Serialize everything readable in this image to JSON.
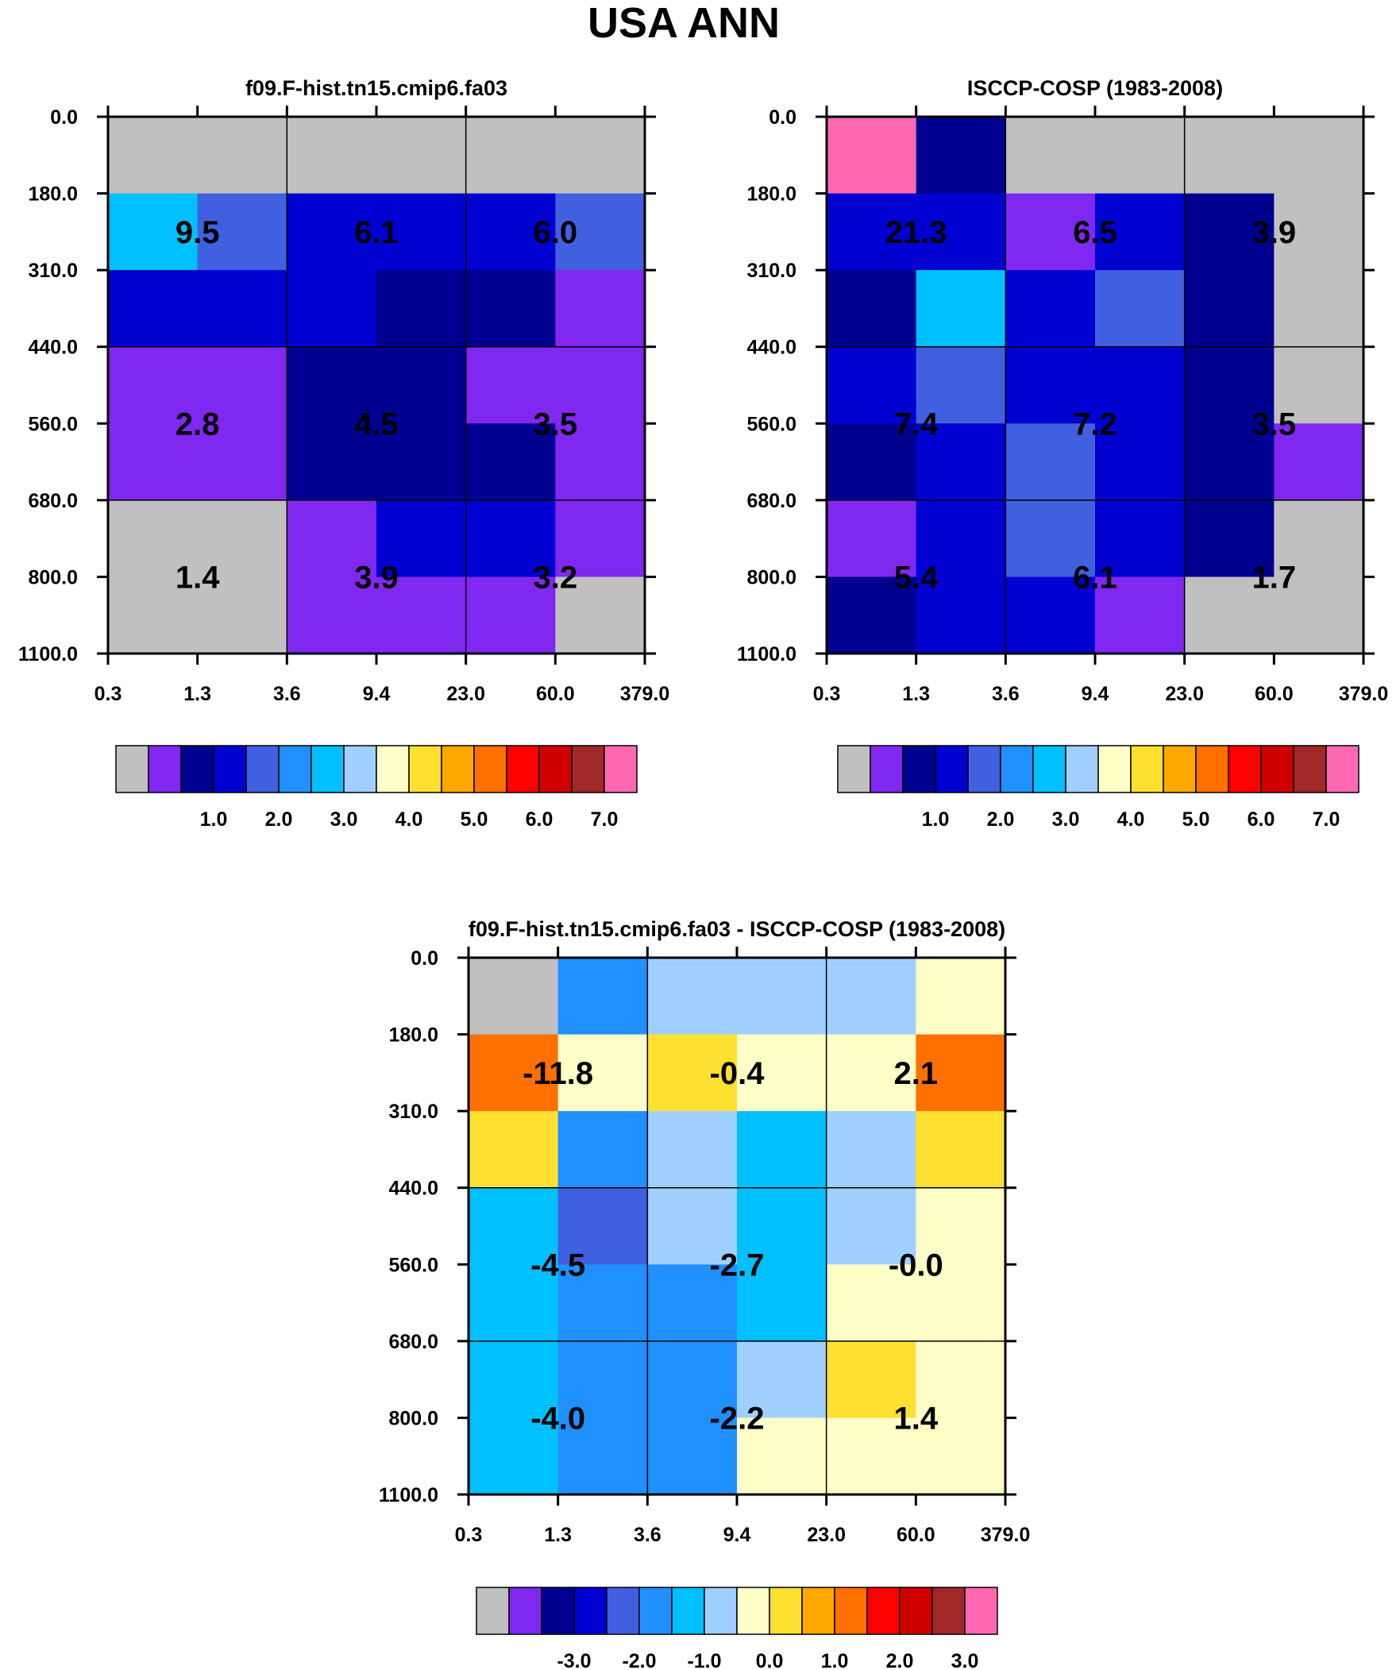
{
  "title": "USA ANN",
  "colors": {
    "palette": [
      "#c0c0c0",
      "#8028f0",
      "#000090",
      "#0000d0",
      "#4060e0",
      "#2090ff",
      "#00c0ff",
      "#a0d0ff",
      "#ffffc8",
      "#ffe030",
      "#ffa800",
      "#ff7000",
      "#ff0000",
      "#d00000",
      "#a02828",
      "#ff69b4"
    ]
  },
  "chart_data": [
    {
      "id": "model",
      "type": "heatmap",
      "title": "f09.F-hist.tn15.cmip6.fa03",
      "xticks": [
        "0.3",
        "1.3",
        "3.6",
        "9.4",
        "23.0",
        "60.0",
        "379.0"
      ],
      "yticks": [
        "0.0",
        "180.0",
        "310.0",
        "440.0",
        "560.0",
        "680.0",
        "800.0",
        "1100.0"
      ],
      "cells": [
        [
          0,
          0,
          0,
          0,
          0,
          0
        ],
        [
          6,
          4,
          3,
          3,
          3,
          4
        ],
        [
          3,
          3,
          3,
          2,
          2,
          1
        ],
        [
          1,
          1,
          2,
          2,
          1,
          1
        ],
        [
          1,
          1,
          2,
          2,
          2,
          1
        ],
        [
          0,
          0,
          1,
          3,
          3,
          1
        ],
        [
          0,
          0,
          1,
          1,
          1,
          0
        ]
      ],
      "labels": [
        {
          "col": 1,
          "row": 1.5,
          "text": "9.5"
        },
        {
          "col": 3,
          "row": 1.5,
          "text": "6.1"
        },
        {
          "col": 5,
          "row": 1.5,
          "text": "6.0"
        },
        {
          "col": 1,
          "row": 4,
          "text": "2.8"
        },
        {
          "col": 3,
          "row": 4,
          "text": "4.5"
        },
        {
          "col": 5,
          "row": 4,
          "text": "3.5"
        },
        {
          "col": 1,
          "row": 6,
          "text": "1.4"
        },
        {
          "col": 3,
          "row": 6,
          "text": "3.9"
        },
        {
          "col": 5,
          "row": 6,
          "text": "3.2"
        }
      ],
      "colorbar_ticks": [
        "1.0",
        "2.0",
        "3.0",
        "4.0",
        "5.0",
        "6.0",
        "7.0"
      ]
    },
    {
      "id": "obs",
      "type": "heatmap",
      "title": "ISCCP-COSP (1983-2008)",
      "xticks": [
        "0.3",
        "1.3",
        "3.6",
        "9.4",
        "23.0",
        "60.0",
        "379.0"
      ],
      "yticks": [
        "0.0",
        "180.0",
        "310.0",
        "440.0",
        "560.0",
        "680.0",
        "800.0",
        "1100.0"
      ],
      "cells": [
        [
          15,
          2,
          0,
          0,
          0,
          0
        ],
        [
          3,
          3,
          1,
          3,
          2,
          0
        ],
        [
          2,
          6,
          3,
          4,
          2,
          0
        ],
        [
          3,
          4,
          3,
          3,
          2,
          0
        ],
        [
          2,
          3,
          4,
          3,
          2,
          1
        ],
        [
          1,
          3,
          4,
          3,
          2,
          0
        ],
        [
          2,
          3,
          3,
          1,
          0,
          0
        ]
      ],
      "labels": [
        {
          "col": 1,
          "row": 1.5,
          "text": "21.3"
        },
        {
          "col": 3,
          "row": 1.5,
          "text": "6.5"
        },
        {
          "col": 5,
          "row": 1.5,
          "text": "3.9"
        },
        {
          "col": 1,
          "row": 4,
          "text": "7.4"
        },
        {
          "col": 3,
          "row": 4,
          "text": "7.2"
        },
        {
          "col": 5,
          "row": 4,
          "text": "3.5"
        },
        {
          "col": 1,
          "row": 6,
          "text": "5.4"
        },
        {
          "col": 3,
          "row": 6,
          "text": "6.1"
        },
        {
          "col": 5,
          "row": 6,
          "text": "1.7"
        }
      ],
      "colorbar_ticks": [
        "1.0",
        "2.0",
        "3.0",
        "4.0",
        "5.0",
        "6.0",
        "7.0"
      ]
    },
    {
      "id": "diff",
      "type": "heatmap",
      "title": "f09.F-hist.tn15.cmip6.fa03 - ISCCP-COSP (1983-2008)",
      "xticks": [
        "0.3",
        "1.3",
        "3.6",
        "9.4",
        "23.0",
        "60.0",
        "379.0"
      ],
      "yticks": [
        "0.0",
        "180.0",
        "310.0",
        "440.0",
        "560.0",
        "680.0",
        "800.0",
        "1100.0"
      ],
      "cells": [
        [
          0,
          5,
          7,
          7,
          7,
          8
        ],
        [
          11,
          8,
          9,
          8,
          8,
          11
        ],
        [
          9,
          5,
          7,
          6,
          7,
          9
        ],
        [
          6,
          4,
          7,
          6,
          7,
          8
        ],
        [
          6,
          5,
          5,
          6,
          8,
          8
        ],
        [
          6,
          5,
          5,
          7,
          9,
          8
        ],
        [
          6,
          5,
          5,
          8,
          8,
          8
        ]
      ],
      "labels": [
        {
          "col": 1,
          "row": 1.5,
          "text": "-11.8"
        },
        {
          "col": 3,
          "row": 1.5,
          "text": "-0.4"
        },
        {
          "col": 5,
          "row": 1.5,
          "text": "2.1"
        },
        {
          "col": 1,
          "row": 4,
          "text": "-4.5"
        },
        {
          "col": 3,
          "row": 4,
          "text": "-2.7"
        },
        {
          "col": 5,
          "row": 4,
          "text": "-0.0"
        },
        {
          "col": 1,
          "row": 6,
          "text": "-4.0"
        },
        {
          "col": 3,
          "row": 6,
          "text": "-2.2"
        },
        {
          "col": 5,
          "row": 6,
          "text": "1.4"
        }
      ],
      "colorbar_ticks": [
        "-3.0",
        "-2.0",
        "-1.0",
        "0.0",
        "1.0",
        "2.0",
        "3.0"
      ]
    }
  ]
}
